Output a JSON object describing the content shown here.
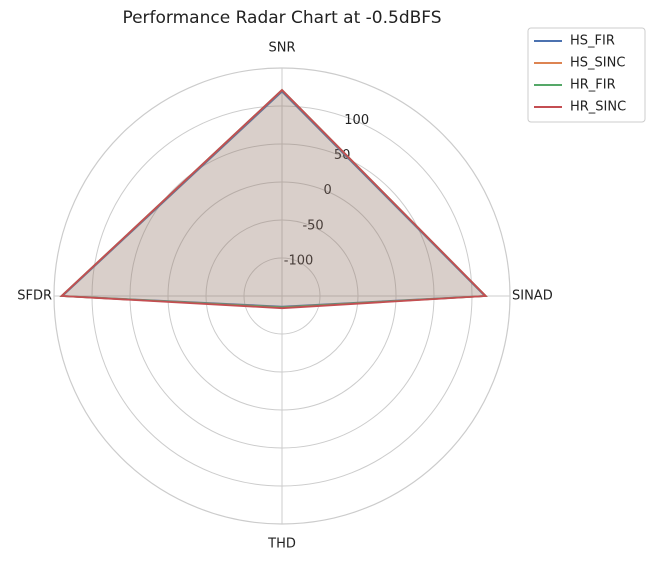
{
  "chart_data": {
    "type": "radar",
    "title": "Performance Radar Chart at -0.5dBFS",
    "categories": [
      "SNR",
      "SINAD",
      "THD",
      "SFDR"
    ],
    "series": [
      {
        "name": "HS_FIR",
        "color": "#4c72b0",
        "values": [
          119,
          117,
          -136,
          139
        ]
      },
      {
        "name": "HS_SINC",
        "color": "#dd8452",
        "values": [
          121,
          118,
          -135,
          140
        ]
      },
      {
        "name": "HR_FIR",
        "color": "#55a868",
        "values": [
          121,
          118,
          -135,
          140
        ]
      },
      {
        "name": "HR_SINC",
        "color": "#c44e52",
        "values": [
          121,
          118,
          -134,
          140
        ]
      }
    ],
    "rlim": [
      -150,
      150
    ],
    "rticks": [
      -100,
      -50,
      0,
      50,
      100
    ],
    "grid": true,
    "legend": "upper right"
  }
}
